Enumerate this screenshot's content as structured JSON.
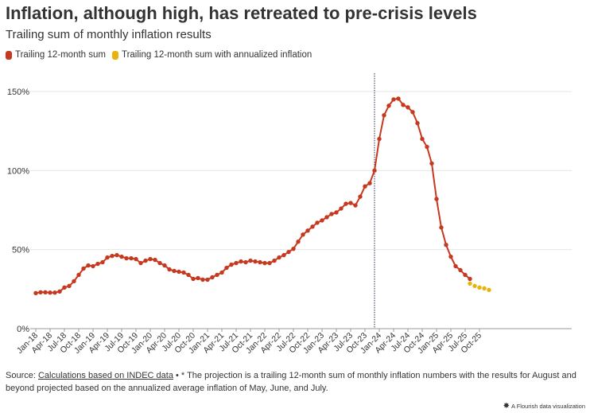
{
  "header": {
    "title": "Inflation, although high, has retreated to pre-crisis levels",
    "subtitle": "Trailing sum of monthly inflation results"
  },
  "legend": [
    {
      "label": "Trailing 12-month sum",
      "color": "#c7391f"
    },
    {
      "label": "Trailing 12-month sum with annualized inflation",
      "color": "#e8b40c"
    }
  ],
  "footer": {
    "source_label": "Source:",
    "source_link": "Calculations based on INDEC data",
    "note": " • * The projection is a trailing 12-month sum of monthly inflation numbers with the results for August and beyond projected based on the annualized average inflation of May, June, and July.",
    "credit": "A Flourish data visualization"
  },
  "chart_data": {
    "type": "line",
    "title": "Inflation, although high, has retreated to pre-crisis levels",
    "subtitle": "Trailing sum of monthly inflation results",
    "xlabel": "",
    "ylabel": "",
    "ylim": [
      0,
      150
    ],
    "yticks": [
      0,
      50,
      100,
      150
    ],
    "ytick_labels": [
      "0%",
      "50%",
      "100%",
      "150%"
    ],
    "grid": true,
    "legend_position": "top-left",
    "x_start": "Jan-18",
    "xtick_labels": [
      "Jan-18",
      "Apr-18",
      "Jul-18",
      "Oct-18",
      "Jan-19",
      "Apr-19",
      "Jul-19",
      "Oct-19",
      "Jan-20",
      "Apr-20",
      "Jul-20",
      "Oct-20",
      "Jan-21",
      "Apr-21",
      "Jul-21",
      "Oct-21",
      "Jan-22",
      "Apr-22",
      "Jul-22",
      "Oct-22",
      "Jan-23",
      "Apr-23",
      "Jul-23",
      "Oct-23",
      "Jan-24",
      "Apr-24",
      "Jul-24",
      "Oct-24",
      "Jan-25",
      "Apr-25",
      "Jul-25",
      "Oct-25"
    ],
    "vertical_marker_index": 71,
    "series": [
      {
        "name": "Trailing 12-month sum",
        "color": "#c7391f",
        "start_index": 0,
        "values": [
          22.5,
          23,
          23,
          22.8,
          22.8,
          23.5,
          26,
          27,
          30,
          34,
          38,
          40,
          39.5,
          41,
          42,
          45,
          46,
          46.5,
          45.5,
          44.5,
          44.5,
          44,
          41.5,
          43,
          44,
          43.5,
          41.5,
          40,
          37.5,
          36.5,
          36,
          35.5,
          34,
          31.5,
          32,
          31,
          31,
          32.5,
          34,
          35.5,
          38.5,
          40.5,
          41.5,
          42.5,
          42,
          43,
          42.5,
          42,
          41.5,
          41.5,
          43,
          45,
          46.5,
          48.5,
          50.5,
          55,
          59.5,
          62,
          64.5,
          67,
          68.5,
          70.5,
          72.5,
          73.5,
          76,
          79,
          79.5,
          78,
          83.5,
          90,
          92,
          100,
          120,
          135,
          141,
          145,
          145.5,
          141.5,
          140,
          137,
          130,
          120,
          115,
          104.5,
          82,
          64,
          53,
          45.5,
          39.5,
          37,
          34,
          31.5
        ]
      },
      {
        "name": "Trailing 12-month sum with annualized inflation",
        "color": "#e8b40c",
        "start_index": 91,
        "values": [
          28.5,
          27,
          26,
          25.5,
          24.5
        ]
      }
    ]
  }
}
